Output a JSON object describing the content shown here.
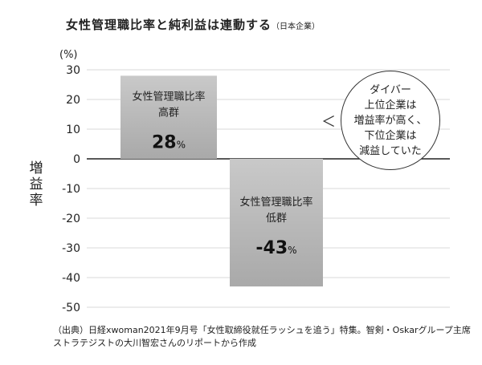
{
  "chart_data": {
    "type": "bar",
    "title": "女性管理職比率と純利益は連動する",
    "subtitle": "（日本企業）",
    "ylabel": "増益率",
    "unit": "(%)",
    "ylim": [
      -50,
      30
    ],
    "yticks": [
      30,
      20,
      10,
      0,
      -10,
      -20,
      -30,
      -40,
      -50
    ],
    "grid": true,
    "bars": [
      {
        "label": "女性管理職比率\n高群",
        "value": 28,
        "value_label": "28",
        "value_unit": "%",
        "color": "#c4c4c4"
      },
      {
        "label": "女性管理職比率\n低群",
        "value": -43,
        "value_label": "-43",
        "value_unit": "%",
        "color": "#c4c4c4"
      }
    ]
  },
  "callout": {
    "text": "ダイバー\n上位企業は\n増益率が高く、\n下位企業は\n減益していた",
    "chevron": "＜"
  },
  "source": "（出典）日経xwoman2021年9月号「女性取締役就任ラッシュを追う」特集。智剣・Oskarグループ主席ストラテジストの大川智宏さんのリポートから作成"
}
